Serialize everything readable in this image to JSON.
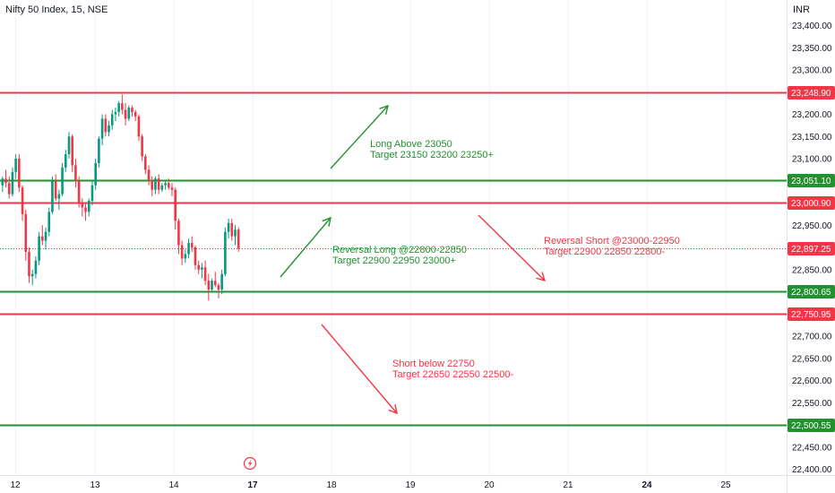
{
  "header": {
    "title": "Nifty 50 Index, 15, NSE",
    "currency": "INR"
  },
  "chart_data": {
    "type": "candlestick",
    "symbol": "Nifty 50 Index",
    "interval": "15",
    "exchange": "NSE",
    "y_ticks": [
      "23,400.00",
      "23,350.00",
      "23,300.00",
      "23,200.00",
      "23,150.00",
      "23,100.00",
      "22,950.00",
      "22,850.00",
      "22,700.00",
      "22,650.00",
      "22,600.00",
      "22,550.00",
      "22,450.00",
      "22,400.00"
    ],
    "y_tick_values": [
      23400,
      23350,
      23300,
      23200,
      23150,
      23100,
      22950,
      22850,
      22700,
      22650,
      22600,
      22550,
      22450,
      22400
    ],
    "x_ticks": [
      {
        "label": "12",
        "bold": false
      },
      {
        "label": "13",
        "bold": false
      },
      {
        "label": "14",
        "bold": false
      },
      {
        "label": "17",
        "bold": true
      },
      {
        "label": "18",
        "bold": false
      },
      {
        "label": "19",
        "bold": false
      },
      {
        "label": "20",
        "bold": false
      },
      {
        "label": "21",
        "bold": false
      },
      {
        "label": "24",
        "bold": true
      },
      {
        "label": "25",
        "bold": false
      }
    ],
    "levels": [
      {
        "value": 23248.9,
        "label": "23,248.90",
        "color": "#f23645"
      },
      {
        "value": 23051.1,
        "label": "23,051.10",
        "color": "#22912f"
      },
      {
        "value": 23000.9,
        "label": "23,000.90",
        "color": "#f23645"
      },
      {
        "value": 22800.65,
        "label": "22,800.65",
        "color": "#22912f"
      },
      {
        "value": 22750.95,
        "label": "22,750.95",
        "color": "#f23645"
      },
      {
        "value": 22500.55,
        "label": "22,500.55",
        "color": "#22912f"
      }
    ],
    "last_price": {
      "value": 22897.25,
      "label": "22,897.25",
      "color": "#f23645"
    },
    "annotations": [
      {
        "lines": [
          "Long Above 23050",
          "Target 23150 23200 23250+"
        ],
        "color": "#22912f"
      },
      {
        "lines": [
          "Reversal Long @22800-22850",
          "Target 22900 22950 23000+"
        ],
        "color": "#22912f"
      },
      {
        "lines": [
          "Reversal Short @23000-22950",
          "Target 22900 22850 22800-"
        ],
        "color": "#f23645"
      },
      {
        "lines": [
          "Short below 22750",
          "Target 22650 22550 22500-"
        ],
        "color": "#f23645"
      }
    ],
    "candles": [
      [
        23040,
        23060,
        23025,
        23055
      ],
      [
        23055,
        23075,
        23035,
        23045
      ],
      [
        23045,
        23060,
        23010,
        23020
      ],
      [
        23020,
        23080,
        23015,
        23070
      ],
      [
        23070,
        23110,
        23055,
        23100
      ],
      [
        23100,
        23110,
        23025,
        23035
      ],
      [
        23035,
        23040,
        22960,
        22975
      ],
      [
        22975,
        22985,
        22870,
        22890
      ],
      [
        22890,
        22900,
        22820,
        22835
      ],
      [
        22835,
        22850,
        22815,
        22840
      ],
      [
        22840,
        22880,
        22830,
        22870
      ],
      [
        22870,
        22935,
        22860,
        22925
      ],
      [
        22925,
        22950,
        22905,
        22915
      ],
      [
        22915,
        22945,
        22895,
        22935
      ],
      [
        22935,
        22990,
        22925,
        22980
      ],
      [
        22980,
        23060,
        22975,
        23050
      ],
      [
        23050,
        23065,
        23005,
        23010
      ],
      [
        23010,
        23030,
        22985,
        23020
      ],
      [
        23020,
        23090,
        23015,
        23080
      ],
      [
        23080,
        23120,
        23070,
        23110
      ],
      [
        23110,
        23160,
        23100,
        23150
      ],
      [
        23150,
        23155,
        23070,
        23085
      ],
      [
        23085,
        23100,
        23035,
        23050
      ],
      [
        23050,
        23060,
        22990,
        23000
      ],
      [
        23000,
        23010,
        22970,
        22990
      ],
      [
        22990,
        23000,
        22960,
        22980
      ],
      [
        22980,
        23010,
        22970,
        23005
      ],
      [
        23005,
        23050,
        22995,
        23040
      ],
      [
        23040,
        23100,
        23030,
        23090
      ],
      [
        23090,
        23150,
        23080,
        23145
      ],
      [
        23145,
        23200,
        23130,
        23190
      ],
      [
        23190,
        23200,
        23150,
        23160
      ],
      [
        23160,
        23185,
        23150,
        23175
      ],
      [
        23175,
        23210,
        23165,
        23200
      ],
      [
        23200,
        23215,
        23185,
        23205
      ],
      [
        23205,
        23230,
        23195,
        23225
      ],
      [
        23225,
        23245,
        23200,
        23210
      ],
      [
        23210,
        23225,
        23175,
        23190
      ],
      [
        23190,
        23220,
        23185,
        23215
      ],
      [
        23215,
        23220,
        23195,
        23205
      ],
      [
        23205,
        23210,
        23185,
        23195
      ],
      [
        23195,
        23200,
        23140,
        23150
      ],
      [
        23150,
        23155,
        23095,
        23105
      ],
      [
        23105,
        23110,
        23065,
        23075
      ],
      [
        23075,
        23085,
        23040,
        23050
      ],
      [
        23050,
        23060,
        23015,
        23030
      ],
      [
        23030,
        23060,
        23020,
        23055
      ],
      [
        23055,
        23065,
        23020,
        23030
      ],
      [
        23030,
        23045,
        23025,
        23040
      ],
      [
        23040,
        23050,
        23030,
        23045
      ],
      [
        23045,
        23055,
        23030,
        23035
      ],
      [
        23035,
        23045,
        23015,
        23030
      ],
      [
        23030,
        23035,
        22940,
        22960
      ],
      [
        22960,
        22965,
        22885,
        22905
      ],
      [
        22905,
        22915,
        22860,
        22875
      ],
      [
        22875,
        22895,
        22865,
        22885
      ],
      [
        22885,
        22920,
        22875,
        22910
      ],
      [
        22910,
        22925,
        22890,
        22900
      ],
      [
        22900,
        22905,
        22850,
        22860
      ],
      [
        22860,
        22870,
        22840,
        22850
      ],
      [
        22850,
        22865,
        22830,
        22855
      ],
      [
        22855,
        22870,
        22815,
        22825
      ],
      [
        22825,
        22840,
        22780,
        22805
      ],
      [
        22805,
        22830,
        22800,
        22825
      ],
      [
        22825,
        22845,
        22810,
        22815
      ],
      [
        22815,
        22820,
        22785,
        22805
      ],
      [
        22805,
        22850,
        22795,
        22840
      ],
      [
        22840,
        22945,
        22835,
        22935
      ],
      [
        22935,
        22965,
        22920,
        22955
      ],
      [
        22955,
        22965,
        22915,
        22925
      ],
      [
        22925,
        22950,
        22905,
        22940
      ],
      [
        22940,
        22945,
        22890,
        22897.25
      ]
    ]
  }
}
